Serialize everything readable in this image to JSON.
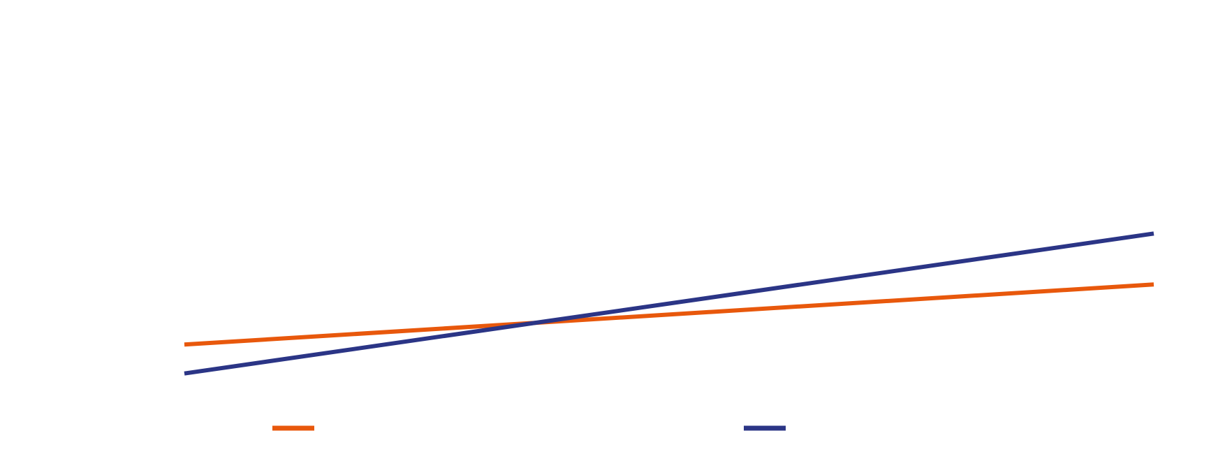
{
  "chart_data": {
    "type": "line",
    "title": "",
    "xlabel": "",
    "ylabel": "",
    "x": [
      0,
      1
    ],
    "xlim": [
      0,
      1
    ],
    "ylim": [
      0,
      1
    ],
    "grid": false,
    "legend_position": "bottom",
    "series": [
      {
        "name": "",
        "color": "#E8580C",
        "values": [
          0.57,
          0.83
        ]
      },
      {
        "name": "",
        "color": "#2B3586",
        "values": [
          0.445,
          1.05
        ]
      }
    ]
  }
}
